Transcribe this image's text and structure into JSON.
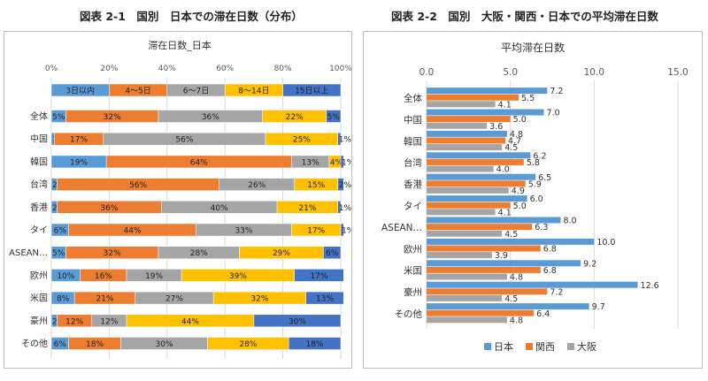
{
  "left_figure": {
    "caption": "図表 2-1　国別　日本での滞在日数（分布）"
  },
  "right_figure": {
    "caption": "図表 2-2　国別　大阪・関西・日本での平均滞在日数"
  },
  "colors": {
    "blue": "#5b9bd5",
    "orange": "#ed7d31",
    "gray": "#a5a5a5",
    "yellow": "#ffc000",
    "darkblue": "#4472c4",
    "grid": "#d9d9d9",
    "axis_text": "#595959"
  },
  "chart_data": [
    {
      "type": "bar",
      "stacked": true,
      "orientation": "horizontal",
      "title": "滞在日数_日本",
      "xlim": [
        0,
        100
      ],
      "x_ticks": [
        "0%",
        "20%",
        "40%",
        "60%",
        "80%",
        "100%"
      ],
      "legend_position": "top",
      "categories": [
        "全体",
        "中国",
        "韓国",
        "台湾",
        "香港",
        "タイ",
        "ASEAN…",
        "欧州",
        "米国",
        "豪州",
        "その他"
      ],
      "series": [
        {
          "name": "3日以内",
          "color": "#5b9bd5",
          "values": [
            5,
            1,
            19,
            2,
            2,
            6,
            5,
            10,
            8,
            2,
            6
          ]
        },
        {
          "name": "4～5日",
          "color": "#ed7d31",
          "values": [
            32,
            17,
            64,
            56,
            36,
            44,
            32,
            16,
            21,
            12,
            18
          ]
        },
        {
          "name": "6～7日",
          "color": "#a5a5a5",
          "values": [
            36,
            56,
            13,
            26,
            40,
            33,
            28,
            19,
            27,
            12,
            30
          ]
        },
        {
          "name": "8～14日",
          "color": "#ffc000",
          "values": [
            22,
            25,
            4,
            15,
            21,
            17,
            29,
            39,
            32,
            44,
            28
          ]
        },
        {
          "name": "15日以上",
          "color": "#4472c4",
          "values": [
            5,
            1,
            1,
            2,
            1,
            1,
            6,
            17,
            13,
            30,
            18
          ]
        }
      ]
    },
    {
      "type": "bar",
      "orientation": "horizontal",
      "title": "平均滞在日数",
      "xlim": [
        0,
        15
      ],
      "x_ticks": [
        "0.0",
        "5.0",
        "10.0",
        "15.0"
      ],
      "legend_position": "bottom",
      "categories": [
        "全体",
        "中国",
        "韓国",
        "台湾",
        "香港",
        "タイ",
        "ASEAN…",
        "欧州",
        "米国",
        "豪州",
        "その他"
      ],
      "series": [
        {
          "name": "日本",
          "color": "#5b9bd5",
          "values": [
            7.2,
            7.0,
            4.8,
            6.2,
            6.5,
            6.0,
            8.0,
            10.0,
            9.2,
            12.6,
            9.7
          ]
        },
        {
          "name": "関西",
          "color": "#ed7d31",
          "values": [
            5.5,
            5.0,
            4.7,
            5.8,
            5.9,
            5.0,
            6.3,
            6.8,
            6.8,
            7.2,
            6.4
          ]
        },
        {
          "name": "大阪",
          "color": "#a5a5a5",
          "values": [
            4.1,
            3.6,
            4.5,
            4.0,
            4.9,
            4.1,
            4.5,
            3.9,
            4.8,
            4.5,
            4.8
          ]
        }
      ]
    }
  ]
}
